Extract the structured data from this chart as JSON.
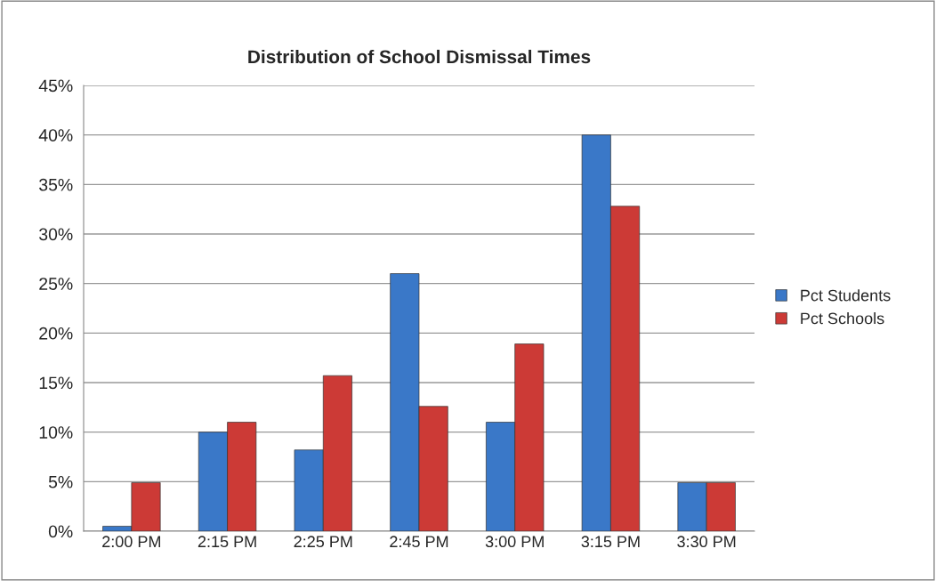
{
  "chart_data": {
    "type": "bar",
    "title": "Distribution of School Dismissal Times",
    "categories": [
      "2:00 PM",
      "2:15 PM",
      "2:25 PM",
      "2:45 PM",
      "3:00 PM",
      "3:15 PM",
      "3:30 PM"
    ],
    "series": [
      {
        "name": "Pct Students",
        "color": "#3a78c8",
        "values": [
          0.5,
          10.0,
          8.2,
          26.0,
          11.0,
          40.0,
          4.9
        ]
      },
      {
        "name": "Pct Schools",
        "color": "#cc3a36",
        "values": [
          4.9,
          11.0,
          15.7,
          12.6,
          18.9,
          32.8,
          4.9
        ]
      }
    ],
    "ylim": [
      0,
      45
    ],
    "yticks": [
      {
        "value": 0,
        "label": "0%"
      },
      {
        "value": 5,
        "label": "5%"
      },
      {
        "value": 10,
        "label": "10%"
      },
      {
        "value": 15,
        "label": "15%"
      },
      {
        "value": 20,
        "label": "20%"
      },
      {
        "value": 25,
        "label": "25%"
      },
      {
        "value": 30,
        "label": "30%"
      },
      {
        "value": 35,
        "label": "35%"
      },
      {
        "value": 40,
        "label": "40%"
      },
      {
        "value": 45,
        "label": "45%"
      }
    ],
    "grid": "y",
    "legend": "right"
  }
}
